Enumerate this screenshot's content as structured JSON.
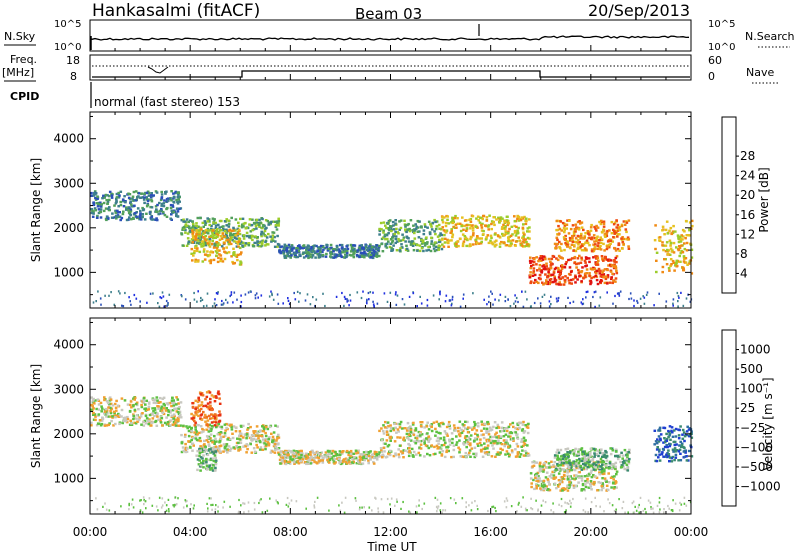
{
  "header": {
    "station": "Hankasalmi (fitACF)",
    "beam": "Beam 03",
    "date": "20/Sep/2013"
  },
  "top_panels": {
    "nsky_label": "N.Sky",
    "nsearch_label": "N.Search",
    "nsky_ticks": [
      "10^5",
      "10^0"
    ],
    "nsearch_ticks": [
      "10^5",
      "10^0"
    ],
    "freq_label_1": "Freq.",
    "freq_label_2": "[MHz]",
    "freq_ticks": [
      "18",
      "8"
    ],
    "nave_label": "Nave",
    "nave_ticks": [
      "60",
      "0"
    ],
    "cpid_label": "CPID",
    "cpid_text": "normal (fast stereo) 153"
  },
  "chart_data": [
    {
      "type": "heatmap",
      "name": "power",
      "ylabel": "Slant Range [km]",
      "xlabel": "",
      "yticks": [
        1000,
        2000,
        3000,
        4000
      ],
      "ylim": [
        200,
        4600
      ],
      "xlim": [
        0,
        24
      ],
      "colorbar": {
        "label": "Power [dB]",
        "ticks": [
          "4",
          "8",
          "12",
          "16",
          "20",
          "24",
          "28"
        ],
        "colors": [
          "#1f2fe0",
          "#2a4fb8",
          "#3d7f8c",
          "#52a05a",
          "#9ccc2a",
          "#e6c020",
          "#f08a14",
          "#ee4a10",
          "#e01010"
        ]
      },
      "echo_bands": [
        {
          "t0": 0.0,
          "t1": 3.6,
          "r0": 2200,
          "r1": 2850,
          "level": 2
        },
        {
          "t0": 3.6,
          "t1": 7.5,
          "r0": 1600,
          "r1": 2250,
          "level": 3
        },
        {
          "t0": 4.0,
          "t1": 6.0,
          "r0": 1200,
          "r1": 2000,
          "level": 5
        },
        {
          "t0": 7.5,
          "t1": 11.5,
          "r0": 1350,
          "r1": 1650,
          "level": 2
        },
        {
          "t0": 11.5,
          "t1": 14.0,
          "r0": 1500,
          "r1": 2200,
          "level": 3
        },
        {
          "t0": 14.0,
          "t1": 17.5,
          "r0": 1600,
          "r1": 2300,
          "level": 5
        },
        {
          "t0": 17.5,
          "t1": 21.0,
          "r0": 750,
          "r1": 1400,
          "level": 7
        },
        {
          "t0": 18.5,
          "t1": 21.5,
          "r0": 1500,
          "r1": 2200,
          "level": 6
        },
        {
          "t0": 22.5,
          "t1": 24.0,
          "r0": 1000,
          "r1": 2200,
          "level": 5
        }
      ]
    },
    {
      "type": "heatmap",
      "name": "velocity",
      "ylabel": "Slant Range [km]",
      "xlabel": "Time UT",
      "xticks": [
        "00:00",
        "04:00",
        "08:00",
        "12:00",
        "16:00",
        "20:00",
        "00:00"
      ],
      "yticks": [
        1000,
        2000,
        3000,
        4000
      ],
      "ylim": [
        200,
        4600
      ],
      "xlim": [
        0,
        24
      ],
      "colorbar": {
        "label": "Velocity [m s⁻¹]",
        "ticks": [
          "1000",
          "500",
          "100",
          "25",
          "−25",
          "−100",
          "−500",
          "−1000"
        ],
        "colors": [
          "#1f3fd0",
          "#2f6fa0",
          "#3a8a70",
          "#5cc040",
          "#c8c8c0",
          "#f0a030",
          "#f07020",
          "#e83010",
          "#e01010"
        ]
      },
      "echo_bands": [
        {
          "t0": 0.0,
          "t1": 3.6,
          "r0": 2200,
          "r1": 2850,
          "level": 4
        },
        {
          "t0": 3.6,
          "t1": 7.5,
          "r0": 1600,
          "r1": 2250,
          "level": 4
        },
        {
          "t0": 4.0,
          "t1": 5.2,
          "r0": 2200,
          "r1": 3000,
          "level": 6
        },
        {
          "t0": 4.2,
          "t1": 5.0,
          "r0": 1200,
          "r1": 1700,
          "level": 3
        },
        {
          "t0": 7.5,
          "t1": 11.5,
          "r0": 1350,
          "r1": 1650,
          "level": 4
        },
        {
          "t0": 11.5,
          "t1": 17.5,
          "r0": 1500,
          "r1": 2300,
          "level": 4
        },
        {
          "t0": 17.5,
          "t1": 21.0,
          "r0": 750,
          "r1": 1400,
          "level": 4
        },
        {
          "t0": 18.5,
          "t1": 21.5,
          "r0": 1200,
          "r1": 1700,
          "level": 3
        },
        {
          "t0": 22.5,
          "t1": 24.0,
          "r0": 1400,
          "r1": 2200,
          "level": 1
        }
      ]
    }
  ]
}
